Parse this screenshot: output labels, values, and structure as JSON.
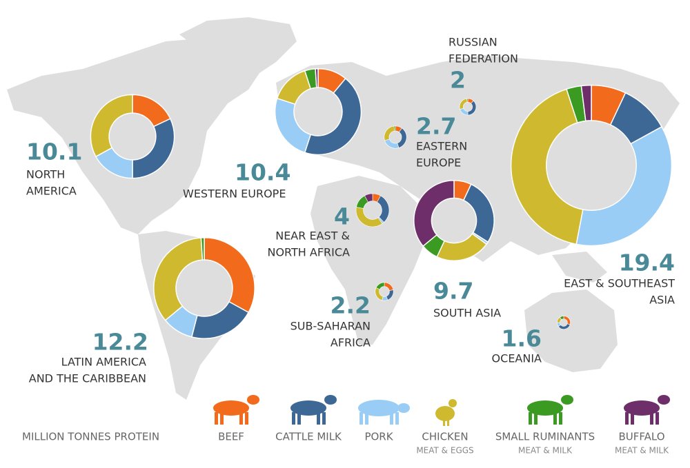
{
  "chart_data": {
    "type": "donut",
    "unit_label": "MILLION TONNES PROTEIN",
    "series": [
      {
        "name": "BEEF",
        "color": "#f26a1b"
      },
      {
        "name": "CATTLE MILK",
        "color": "#3d6895"
      },
      {
        "name": "PORK",
        "color": "#99cdf5"
      },
      {
        "name": "CHICKEN",
        "subtitle": "MEAT & EGGS",
        "color": "#cfb92f"
      },
      {
        "name": "SMALL RUMINANTS",
        "subtitle": "MEAT & MILK",
        "color": "#3a9a21"
      },
      {
        "name": "BUFFALO",
        "subtitle": "MEAT & MILK",
        "color": "#6e2e6a"
      }
    ],
    "regions": [
      {
        "name_lines": [
          "NORTH",
          "AMERICA"
        ],
        "total": 10.1,
        "shares": [
          18,
          32,
          17,
          33,
          0,
          0
        ]
      },
      {
        "name_lines": [
          "WESTERN EUROPE"
        ],
        "total": 10.4,
        "shares": [
          11,
          44,
          25,
          15,
          4,
          1
        ]
      },
      {
        "name_lines": [
          "LATIN AMERICA",
          "AND THE CARIBBEAN"
        ],
        "total": 12.2,
        "shares": [
          33,
          21,
          10,
          35,
          1,
          0
        ]
      },
      {
        "name_lines": [
          "EAST & SOUTHEAST",
          "ASIA"
        ],
        "total": 19.4,
        "shares": [
          7,
          10,
          36,
          42,
          3,
          2
        ]
      },
      {
        "name_lines": [
          "SOUTH ASIA"
        ],
        "total": 9.7,
        "shares": [
          7,
          27,
          1,
          22,
          7,
          36
        ]
      },
      {
        "name_lines": [
          "NEAR EAST &",
          "NORTH AFRICA"
        ],
        "total": 4.0,
        "shares": [
          8,
          30,
          2,
          38,
          14,
          8
        ]
      },
      {
        "name_lines": [
          "EASTERN",
          "EUROPE"
        ],
        "total": 2.7,
        "shares": [
          10,
          35,
          25,
          28,
          2,
          0
        ]
      },
      {
        "name_lines": [
          "RUSSIAN",
          "FEDERATION"
        ],
        "total": 2.0,
        "shares": [
          12,
          38,
          20,
          28,
          2,
          0
        ]
      },
      {
        "name_lines": [
          "SUB-SAHARAN",
          "AFRICA"
        ],
        "total": 2.2,
        "shares": [
          22,
          22,
          10,
          28,
          18,
          0
        ]
      },
      {
        "name_lines": [
          "OCEANIA"
        ],
        "total": 1.6,
        "shares": [
          30,
          35,
          10,
          15,
          10,
          0
        ]
      }
    ]
  }
}
